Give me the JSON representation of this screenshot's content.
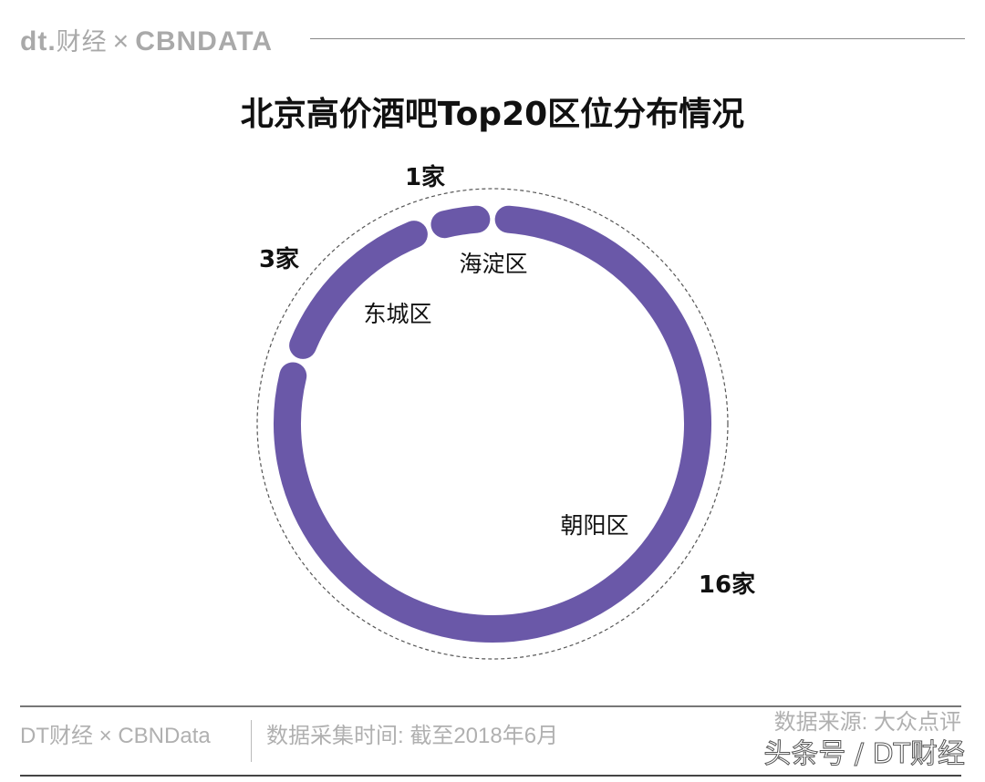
{
  "header": {
    "logo_dt": "dt.",
    "logo_cn": "财经",
    "logo_x": "×",
    "logo_cbn": "CBNDATA"
  },
  "chart_data": {
    "type": "pie",
    "title": "北京高价酒吧Top20区位分布情况",
    "style": "donut ring",
    "color": "#6a58a8",
    "total": 20,
    "slices": [
      {
        "label": "朝阳区",
        "value": 16,
        "value_label": "16家"
      },
      {
        "label": "东城区",
        "value": 3,
        "value_label": "3家"
      },
      {
        "label": "海淀区",
        "value": 1,
        "value_label": "1家"
      }
    ]
  },
  "footer": {
    "brand": "DT财经 × CBNData",
    "collection_time": "数据采集时间: 截至2018年6月",
    "source": "数据来源: 大众点评",
    "watermark": "头条号 / DT财经"
  }
}
